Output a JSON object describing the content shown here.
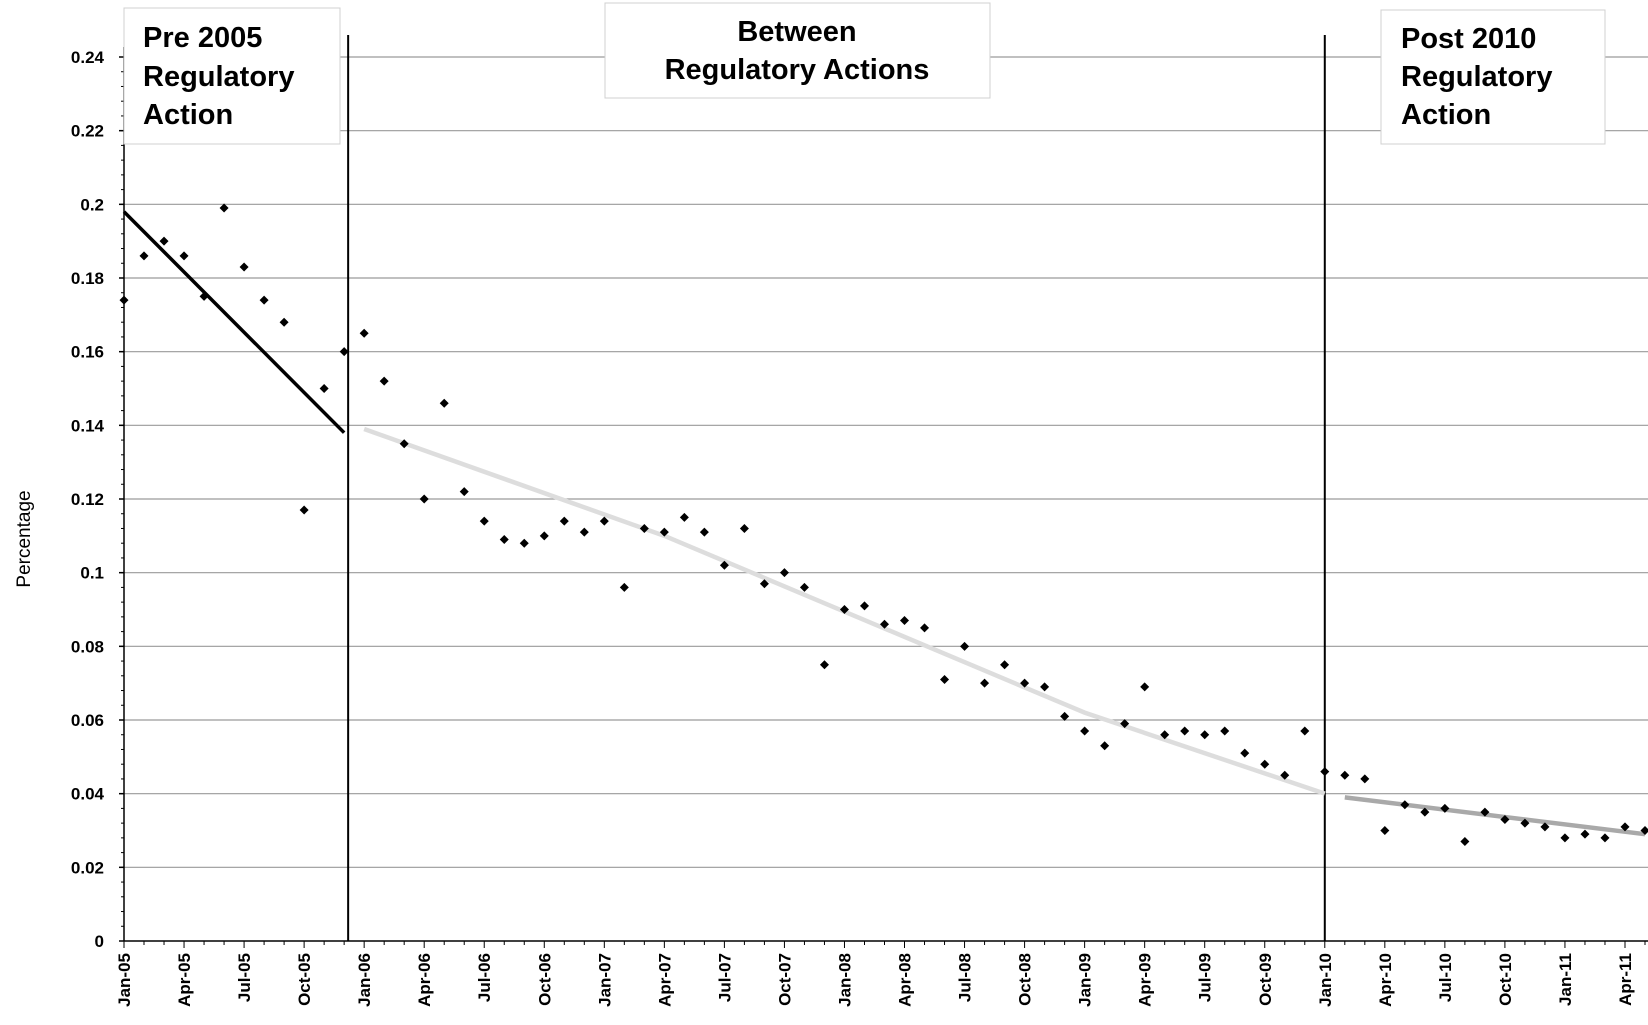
{
  "chart_data": {
    "type": "scatter",
    "title": "",
    "xlabel": "",
    "ylabel": "Percentage",
    "ylim": [
      0,
      0.24
    ],
    "yticks": [
      "0",
      "0.02",
      "0.04",
      "0.06",
      "0.08",
      "0.1",
      "0.12",
      "0.14",
      "0.16",
      "0.18",
      "0.2",
      "0.22",
      "0.24"
    ],
    "xtick_labels": [
      "Jan-05",
      "Apr-05",
      "Jul-05",
      "Oct-05",
      "Jan-06",
      "Apr-06",
      "Jul-06",
      "Oct-06",
      "Jan-07",
      "Apr-07",
      "Jul-07",
      "Oct-07",
      "Jan-08",
      "Apr-08",
      "Jul-08",
      "Oct-08",
      "Jan-09",
      "Apr-09",
      "Jul-09",
      "Oct-09",
      "Jan-10",
      "Apr-10",
      "Jul-10",
      "Oct-10",
      "Jan-11",
      "Apr-11"
    ],
    "x_start": "Jan-05",
    "x_end": "May-11",
    "grid": true,
    "regions": [
      {
        "lines": [
          "Pre 2005",
          "Regulatory",
          "Action"
        ]
      },
      {
        "lines": [
          "Between",
          "Regulatory Actions"
        ]
      },
      {
        "lines": [
          "Post 2010",
          "Regulatory",
          "Action"
        ]
      }
    ],
    "dividers": [
      "Dec-05",
      "Jan-10"
    ],
    "series": [
      {
        "marker": "diamond",
        "color": "#000000",
        "x": [
          "Jan-05",
          "Feb-05",
          "Mar-05",
          "Apr-05",
          "May-05",
          "Jun-05",
          "Jul-05",
          "Aug-05",
          "Sep-05",
          "Oct-05",
          "Nov-05",
          "Dec-05",
          "Jan-06",
          "Feb-06",
          "Mar-06",
          "Apr-06",
          "May-06",
          "Jun-06",
          "Jul-06",
          "Aug-06",
          "Sep-06",
          "Oct-06",
          "Nov-06",
          "Dec-06",
          "Jan-07",
          "Feb-07",
          "Mar-07",
          "Apr-07",
          "May-07",
          "Jun-07",
          "Jul-07",
          "Aug-07",
          "Sep-07",
          "Oct-07",
          "Nov-07",
          "Dec-07",
          "Jan-08",
          "Feb-08",
          "Mar-08",
          "Apr-08",
          "May-08",
          "Jun-08",
          "Jul-08",
          "Aug-08",
          "Sep-08",
          "Oct-08",
          "Nov-08",
          "Dec-08",
          "Jan-09",
          "Feb-09",
          "Mar-09",
          "Apr-09",
          "May-09",
          "Jun-09",
          "Jul-09",
          "Aug-09",
          "Sep-09",
          "Oct-09",
          "Nov-09",
          "Dec-09",
          "Jan-10",
          "Feb-10",
          "Mar-10",
          "Apr-10",
          "May-10",
          "Jun-10",
          "Jul-10",
          "Aug-10",
          "Sep-10",
          "Oct-10",
          "Nov-10",
          "Dec-10",
          "Jan-11",
          "Feb-11",
          "Mar-11",
          "Apr-11",
          "May-11"
        ],
        "y": [
          0.174,
          0.186,
          0.19,
          0.186,
          0.175,
          0.199,
          0.183,
          0.174,
          0.168,
          0.117,
          0.15,
          0.16,
          0.165,
          0.152,
          0.135,
          0.12,
          0.146,
          0.122,
          0.114,
          0.109,
          0.108,
          0.11,
          0.114,
          0.111,
          0.114,
          0.096,
          0.112,
          0.111,
          0.115,
          0.111,
          0.102,
          0.112,
          0.097,
          0.1,
          0.096,
          0.075,
          0.09,
          0.091,
          0.086,
          0.087,
          0.085,
          0.071,
          0.08,
          0.07,
          0.075,
          0.07,
          0.069,
          0.061,
          0.057,
          0.053,
          0.059,
          0.069,
          0.056,
          0.057,
          0.056,
          0.057,
          0.051,
          0.048,
          0.045,
          0.057,
          0.046,
          0.045,
          0.044,
          0.03,
          0.037,
          0.035,
          0.036,
          0.027,
          0.035,
          0.033,
          0.032,
          0.031,
          0.028,
          0.029,
          0.028,
          0.031,
          0.03
        ]
      }
    ],
    "trend_lines": [
      {
        "segment": "pre-2005",
        "color": "#000000",
        "x": [
          "Jan-05",
          "Dec-05"
        ],
        "y": [
          0.198,
          0.138
        ]
      },
      {
        "segment": "between",
        "color": "#dddddd",
        "x": [
          "Jan-06",
          "Apr-07",
          "Jan-09",
          "Jan-10"
        ],
        "y": [
          0.139,
          0.11,
          0.062,
          0.04
        ]
      },
      {
        "segment": "post-2010",
        "color": "#a9a9a9",
        "x": [
          "Feb-10",
          "May-11"
        ],
        "y": [
          0.039,
          0.029
        ]
      }
    ]
  }
}
